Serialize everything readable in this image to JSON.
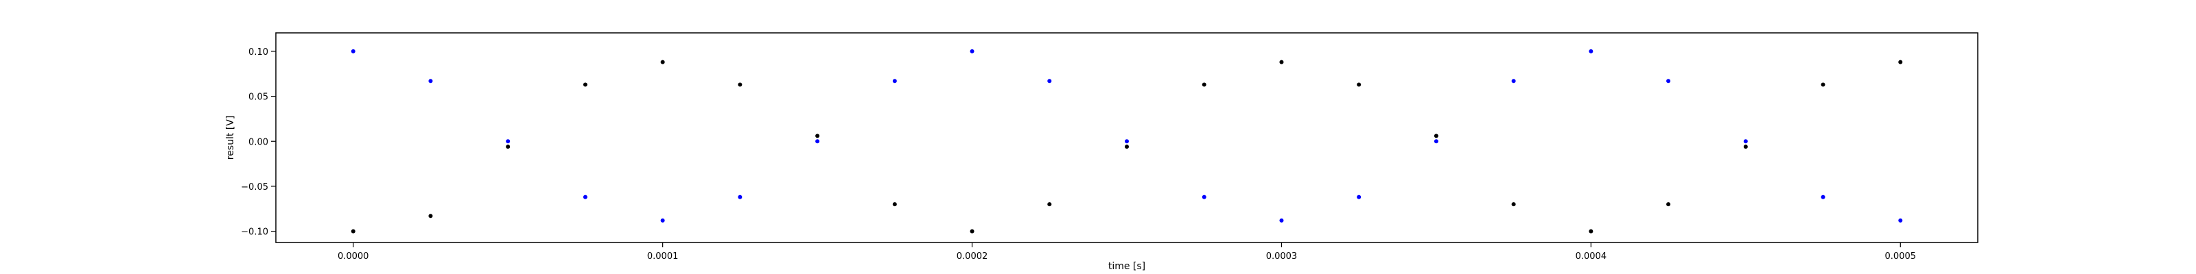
{
  "chart_data": {
    "type": "scatter",
    "title": "",
    "xlabel": "time [s]",
    "ylabel": "result [V]",
    "xlim": [
      -2.5e-05,
      0.000525
    ],
    "ylim": [
      -0.1125,
      0.1205
    ],
    "x_ticks": [
      0.0,
      0.0001,
      0.0002,
      0.0003,
      0.0004,
      0.0005
    ],
    "x_tick_labels": [
      "0.0000",
      "0.0001",
      "0.0002",
      "0.0003",
      "0.0004",
      "0.0005"
    ],
    "y_ticks": [
      0.1,
      0.05,
      0.0,
      -0.05,
      -0.1
    ],
    "y_tick_labels": [
      "0.10",
      "0.05",
      "0.00",
      "−0.05",
      "−0.10"
    ],
    "grid": false,
    "series": [
      {
        "color": "#000000",
        "x": [
          0.0,
          2.5e-05,
          5e-05,
          7.5e-05,
          0.0001,
          0.000125,
          0.00015,
          0.000175,
          0.0002,
          0.000225,
          0.00025,
          0.000275,
          0.0003,
          0.000325,
          0.00035,
          0.000375,
          0.0004,
          0.000425,
          0.00045,
          0.000475,
          0.0005
        ],
        "y": [
          -0.1,
          -0.083,
          -0.006,
          0.063,
          0.088,
          0.063,
          0.006,
          -0.07,
          -0.1,
          -0.07,
          -0.006,
          0.063,
          0.088,
          0.063,
          0.006,
          -0.07,
          -0.1,
          -0.07,
          -0.006,
          0.063,
          0.088
        ]
      },
      {
        "color": "#0000ff",
        "x": [
          0.0,
          2.5e-05,
          5e-05,
          7.5e-05,
          0.0001,
          0.000125,
          0.00015,
          0.000175,
          0.0002,
          0.000225,
          0.00025,
          0.000275,
          0.0003,
          0.000325,
          0.00035,
          0.000375,
          0.0004,
          0.000425,
          0.00045,
          0.000475,
          0.0005
        ],
        "y": [
          0.1,
          0.067,
          0.0,
          -0.062,
          -0.088,
          -0.062,
          0.0,
          0.067,
          0.1,
          0.067,
          0.0,
          -0.062,
          -0.088,
          -0.062,
          0.0,
          0.067,
          0.1,
          0.067,
          0.0,
          -0.062,
          -0.088
        ]
      }
    ]
  }
}
